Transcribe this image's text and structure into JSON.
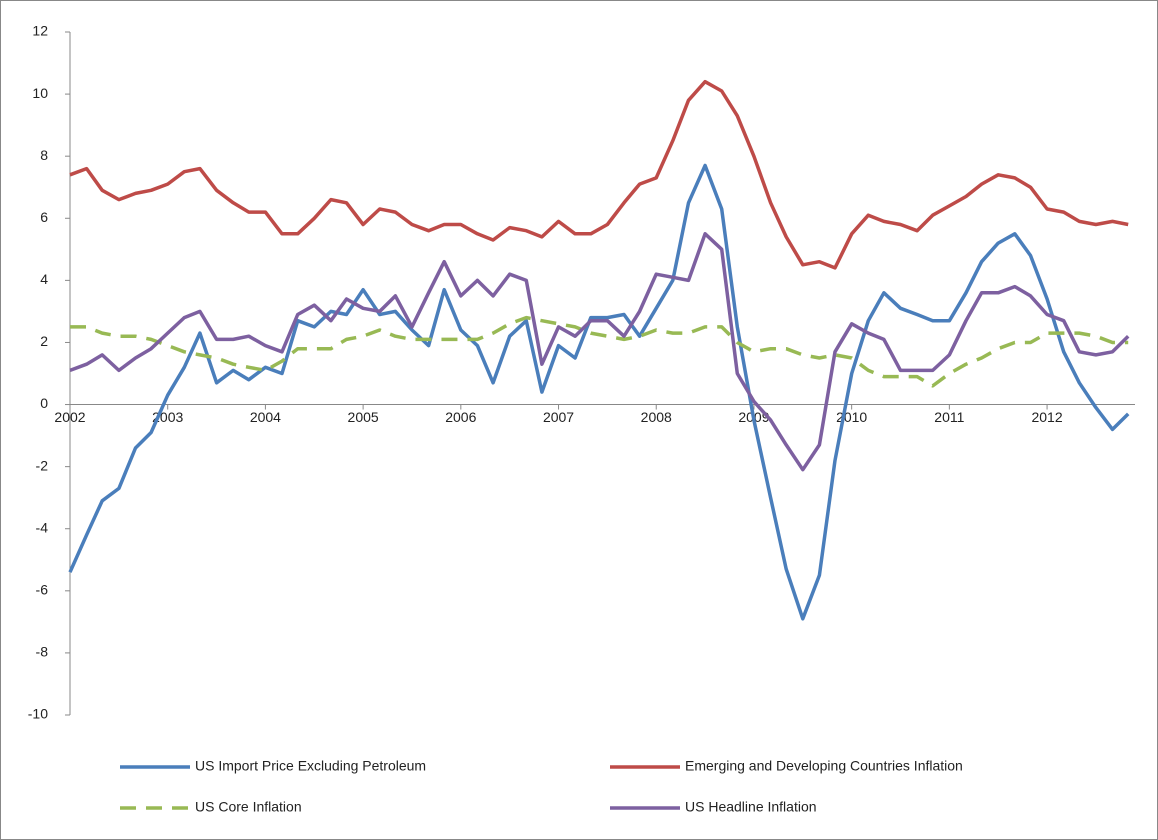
{
  "chart_data": {
    "type": "line",
    "x": [
      2002,
      2002.17,
      2002.33,
      2002.5,
      2002.67,
      2002.83,
      2003,
      2003.17,
      2003.33,
      2003.5,
      2003.67,
      2003.83,
      2004,
      2004.17,
      2004.33,
      2004.5,
      2004.67,
      2004.83,
      2005,
      2005.17,
      2005.33,
      2005.5,
      2005.67,
      2005.83,
      2006,
      2006.17,
      2006.33,
      2006.5,
      2006.67,
      2006.83,
      2007,
      2007.17,
      2007.33,
      2007.5,
      2007.67,
      2007.83,
      2008,
      2008.17,
      2008.33,
      2008.5,
      2008.67,
      2008.83,
      2009,
      2009.17,
      2009.33,
      2009.5,
      2009.67,
      2009.83,
      2010,
      2010.17,
      2010.33,
      2010.5,
      2010.67,
      2010.83,
      2011,
      2011.17,
      2011.33,
      2011.5,
      2011.67,
      2011.83,
      2012,
      2012.17,
      2012.33,
      2012.5,
      2012.67,
      2012.83
    ],
    "series": [
      {
        "name": "US Import Price Excluding Petroleum",
        "color": "#4a7ebb",
        "values": [
          -5.4,
          -4.2,
          -3.1,
          -2.7,
          -1.4,
          -0.9,
          0.3,
          1.2,
          2.3,
          0.7,
          1.1,
          0.8,
          1.2,
          1.0,
          2.7,
          2.5,
          3.0,
          2.9,
          3.7,
          2.9,
          3.0,
          2.4,
          1.9,
          3.7,
          2.4,
          1.9,
          0.7,
          2.2,
          2.7,
          0.4,
          1.9,
          1.5,
          2.8,
          2.8,
          2.9,
          2.2,
          3.1,
          4.0,
          6.5,
          7.7,
          6.3,
          2.5,
          -0.5,
          -3.0,
          -5.3,
          -6.9,
          -5.5,
          -1.8,
          1.0,
          2.7,
          3.6,
          3.1,
          2.9,
          2.7,
          2.7,
          3.6,
          4.6,
          5.2,
          5.5,
          4.8,
          3.4,
          1.7,
          0.7,
          -0.1,
          -0.8,
          -0.3
        ]
      },
      {
        "name": "Emerging and Developing Countries Inflation",
        "color": "#be4b48",
        "values": [
          7.4,
          7.6,
          6.9,
          6.6,
          6.8,
          6.9,
          7.1,
          7.5,
          7.6,
          6.9,
          6.5,
          6.2,
          6.2,
          5.5,
          5.5,
          6.0,
          6.6,
          6.5,
          5.8,
          6.3,
          6.2,
          5.8,
          5.6,
          5.8,
          5.8,
          5.5,
          5.3,
          5.7,
          5.6,
          5.4,
          5.9,
          5.5,
          5.5,
          5.8,
          6.5,
          7.1,
          7.3,
          8.5,
          9.8,
          10.4,
          10.1,
          9.3,
          8.0,
          6.5,
          5.4,
          4.5,
          4.6,
          4.4,
          5.5,
          6.1,
          5.9,
          5.8,
          5.6,
          6.1,
          6.4,
          6.7,
          7.1,
          7.4,
          7.3,
          7.0,
          6.3,
          6.2,
          5.9,
          5.8,
          5.9,
          5.8
        ]
      },
      {
        "name": "US Core Inflation",
        "color": "#98b954",
        "dashed": true,
        "values": [
          2.5,
          2.5,
          2.3,
          2.2,
          2.2,
          2.1,
          1.9,
          1.7,
          1.6,
          1.5,
          1.3,
          1.2,
          1.1,
          1.4,
          1.8,
          1.8,
          1.8,
          2.1,
          2.2,
          2.4,
          2.2,
          2.1,
          2.1,
          2.1,
          2.1,
          2.1,
          2.3,
          2.6,
          2.8,
          2.7,
          2.6,
          2.5,
          2.3,
          2.2,
          2.1,
          2.2,
          2.4,
          2.3,
          2.3,
          2.5,
          2.5,
          2.0,
          1.7,
          1.8,
          1.8,
          1.6,
          1.5,
          1.6,
          1.5,
          1.1,
          0.9,
          0.9,
          0.9,
          0.6,
          1.0,
          1.3,
          1.5,
          1.8,
          2.0,
          2.0,
          2.3,
          2.3,
          2.3,
          2.2,
          2.0,
          2.0
        ]
      },
      {
        "name": "US Headline Inflation",
        "color": "#7d60a0",
        "values": [
          1.1,
          1.3,
          1.6,
          1.1,
          1.5,
          1.8,
          2.3,
          2.8,
          3.0,
          2.1,
          2.1,
          2.2,
          1.9,
          1.7,
          2.9,
          3.2,
          2.7,
          3.4,
          3.1,
          3.0,
          3.5,
          2.5,
          3.6,
          4.6,
          3.5,
          4.0,
          3.5,
          4.2,
          4.0,
          1.3,
          2.5,
          2.2,
          2.7,
          2.7,
          2.2,
          3.0,
          4.2,
          4.1,
          4.0,
          5.5,
          5.0,
          1.0,
          0.1,
          -0.5,
          -1.3,
          -2.1,
          -1.3,
          1.7,
          2.6,
          2.3,
          2.1,
          1.1,
          1.1,
          1.1,
          1.6,
          2.7,
          3.6,
          3.6,
          3.8,
          3.5,
          2.9,
          2.7,
          1.7,
          1.6,
          1.7,
          2.2
        ]
      }
    ],
    "xlim": [
      2002,
      2012.9
    ],
    "xticks": [
      2002,
      2003,
      2004,
      2005,
      2006,
      2007,
      2008,
      2009,
      2010,
      2011,
      2012
    ],
    "ylim": [
      -10,
      12
    ],
    "yticks": [
      -10,
      -8,
      -6,
      -4,
      -2,
      0,
      2,
      4,
      6,
      8,
      10,
      12
    ],
    "legend": "bottom"
  }
}
